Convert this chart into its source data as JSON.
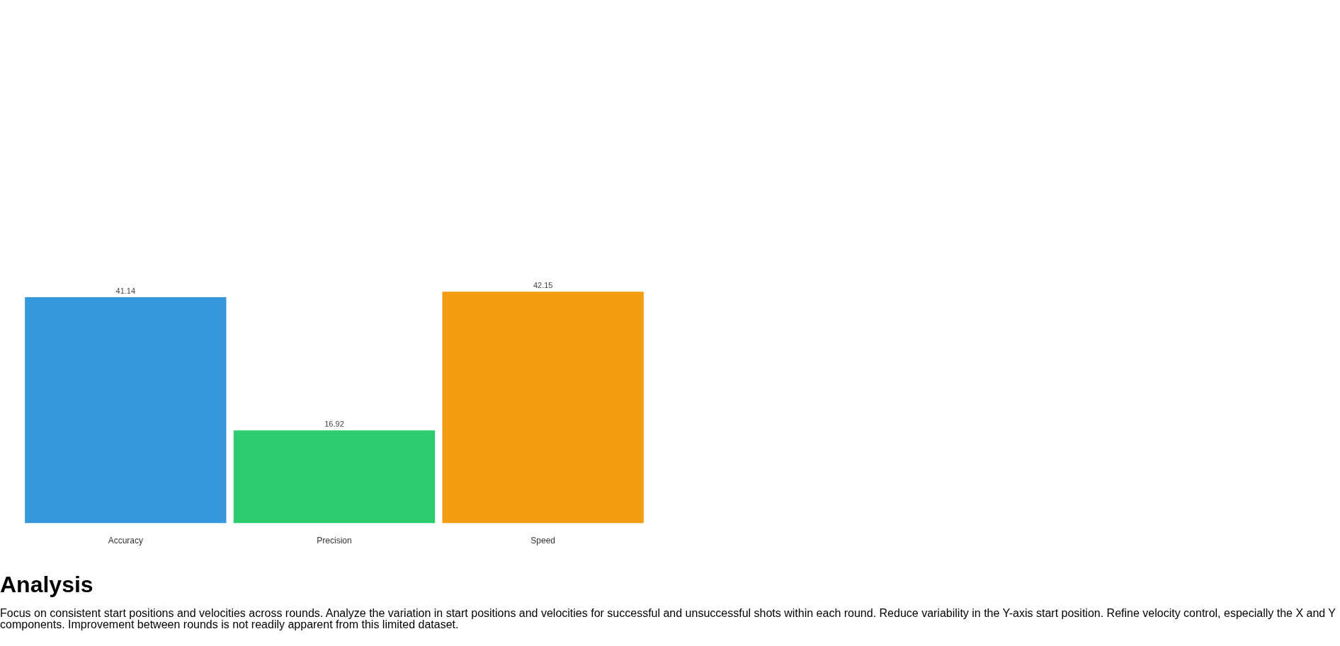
{
  "chart_data": {
    "type": "bar",
    "categories": [
      "Accuracy",
      "Precision",
      "Speed"
    ],
    "values": [
      41.14,
      16.92,
      42.15
    ],
    "colors": [
      "#3498db",
      "#2ecc71",
      "#f39c12"
    ],
    "data_labels": true,
    "grid": false,
    "legend": false,
    "tick_labels": "x",
    "annotations": [
      "Analysis",
      "Focus on consistent start positions and velocities across rounds. Analyze the variation in start positions and velocities for successful and unsuccessful shots within each round. Reduce variability in the Y-axis start position. Refine velocity control, especially the X and Y components. Improvement between rounds is not readily apparent from this limited dataset."
    ]
  }
}
